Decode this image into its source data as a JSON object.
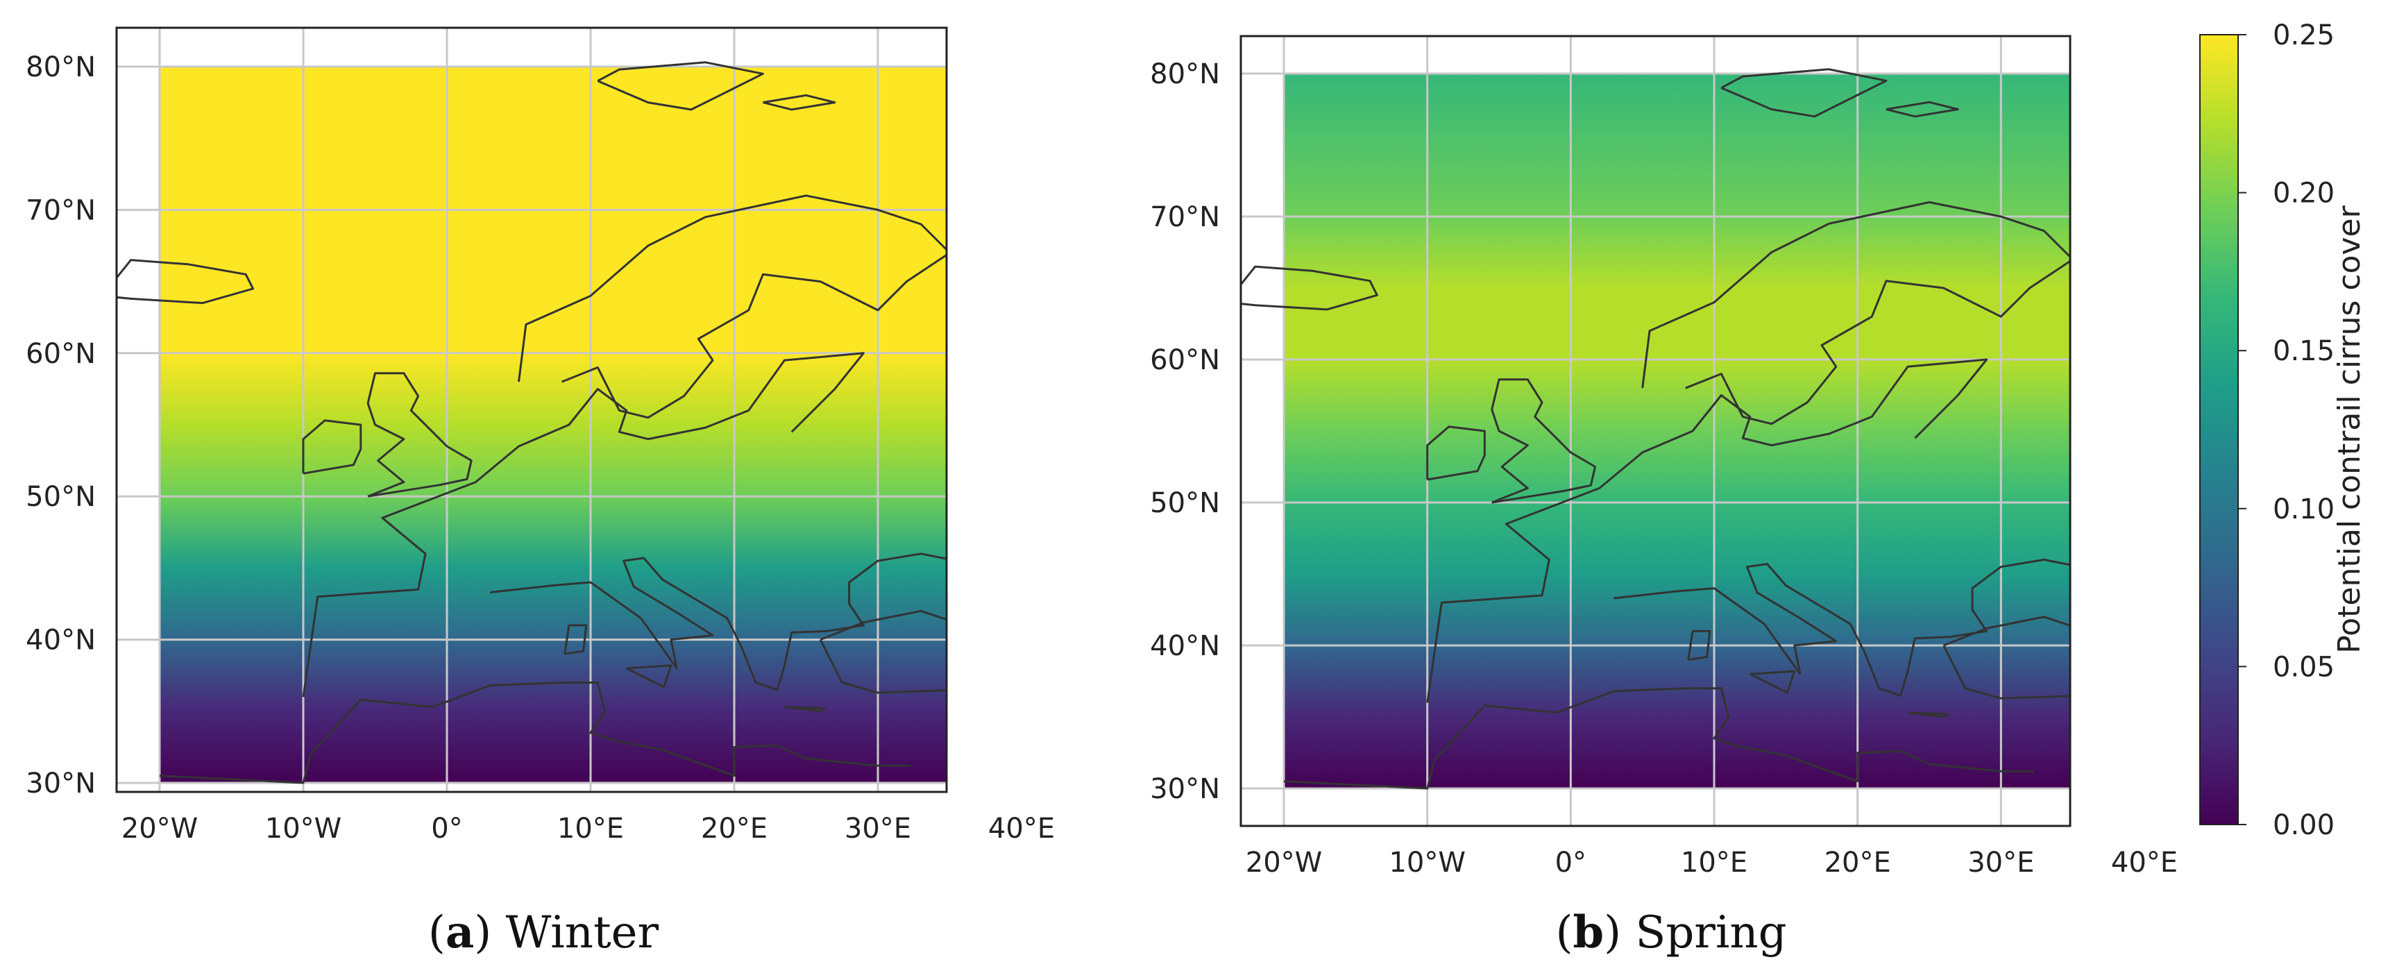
{
  "chart_data": [
    {
      "type": "heatmap",
      "caption": {
        "letter": "a",
        "text": "Winter"
      },
      "xticks": [
        "20°W",
        "10°W",
        "0°",
        "10°E",
        "20°E",
        "30°E",
        "40°E"
      ],
      "yticks": [
        "30°N",
        "40°N",
        "50°N",
        "60°N",
        "70°N",
        "80°N"
      ],
      "extent_lon": [
        -20,
        40
      ],
      "extent_lat": [
        30,
        80
      ],
      "grid": true,
      "basemap": "coastlines",
      "value_profile": [
        {
          "lat": 30,
          "value": 0.01
        },
        {
          "lat": 35,
          "value": 0.04
        },
        {
          "lat": 40,
          "value": 0.09
        },
        {
          "lat": 45,
          "value": 0.14
        },
        {
          "lat": 50,
          "value": 0.19
        },
        {
          "lat": 55,
          "value": 0.23
        },
        {
          "lat": 60,
          "value": 0.25
        },
        {
          "lat": 80,
          "value": 0.25
        }
      ]
    },
    {
      "type": "heatmap",
      "caption": {
        "letter": "b",
        "text": "Spring"
      },
      "xticks": [
        "20°W",
        "10°W",
        "0°",
        "10°E",
        "20°E",
        "30°E",
        "40°E"
      ],
      "yticks": [
        "30°N",
        "40°N",
        "50°N",
        "60°N",
        "70°N",
        "80°N"
      ],
      "extent_lon": [
        -20,
        40
      ],
      "extent_lat": [
        30,
        80
      ],
      "grid": true,
      "basemap": "coastlines",
      "value_profile": [
        {
          "lat": 30,
          "value": 0.01
        },
        {
          "lat": 35,
          "value": 0.03
        },
        {
          "lat": 40,
          "value": 0.08
        },
        {
          "lat": 45,
          "value": 0.13
        },
        {
          "lat": 50,
          "value": 0.17
        },
        {
          "lat": 55,
          "value": 0.2
        },
        {
          "lat": 60,
          "value": 0.22
        },
        {
          "lat": 65,
          "value": 0.22
        },
        {
          "lat": 70,
          "value": 0.2
        },
        {
          "lat": 80,
          "value": 0.18
        }
      ]
    }
  ],
  "colorbar": {
    "label": "Potential contrail cirrus cover",
    "ticks": [
      "0.00",
      "0.05",
      "0.10",
      "0.15",
      "0.20",
      "0.25"
    ],
    "range": [
      0,
      0.25
    ],
    "colormap": "viridis",
    "stops": [
      "#440154",
      "#482878",
      "#3e4989",
      "#31688e",
      "#26828e",
      "#1f9e89",
      "#35b779",
      "#6ece58",
      "#b5de2b",
      "#fde725"
    ]
  },
  "colors": {
    "coastline": "#333333",
    "grid": "#c8c8c8",
    "frame": "#222222"
  }
}
